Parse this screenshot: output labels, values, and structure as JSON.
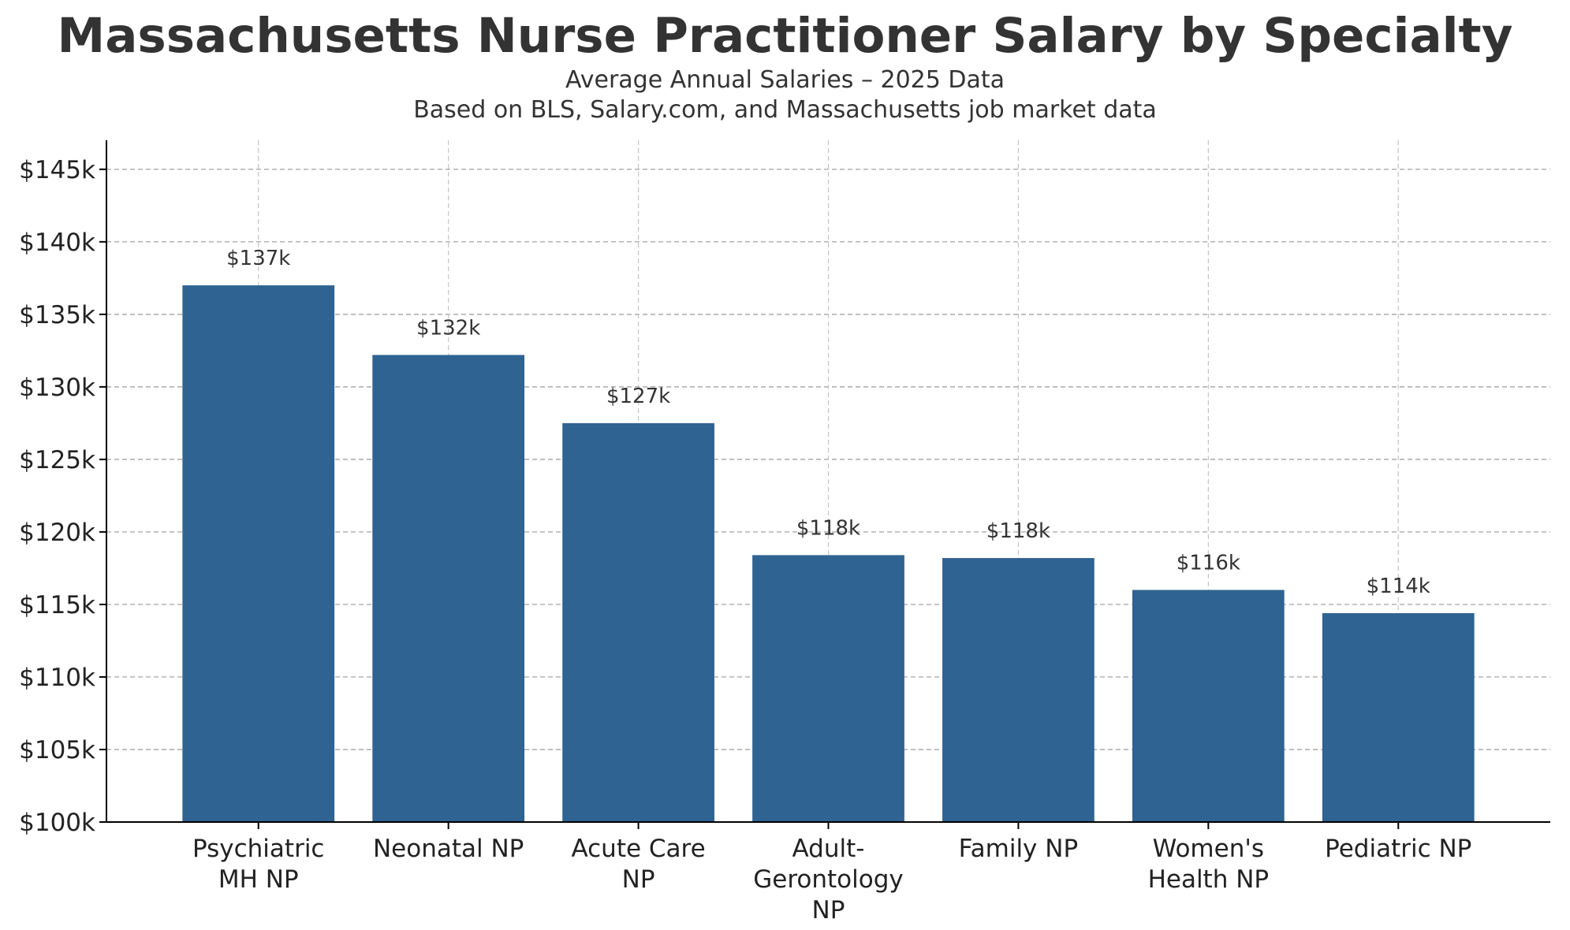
{
  "title": "Massachusetts Nurse Practitioner Salary by Specialty",
  "subtitle_lines": [
    "Average Annual Salaries – 2025 Data",
    "Based on BLS, Salary.com, and Massachusetts job market data"
  ],
  "colors": {
    "bar": "#2f6391",
    "text": "#333333",
    "grid": "#999999",
    "axis": "#000000"
  },
  "chart_data": {
    "type": "bar",
    "categories": [
      [
        "Psychiatric",
        "MH NP"
      ],
      [
        "Neonatal NP"
      ],
      [
        "Acute Care",
        "NP"
      ],
      [
        "Adult-",
        "Gerontology",
        "NP"
      ],
      [
        "Family NP"
      ],
      [
        "Women's",
        "Health NP"
      ],
      [
        "Pediatric NP"
      ]
    ],
    "values": [
      137000,
      132200,
      127500,
      118400,
      118200,
      116000,
      114400
    ],
    "data_labels": [
      "$137k",
      "$132k",
      "$127k",
      "$118k",
      "$118k",
      "$116k",
      "$114k"
    ],
    "ylim": [
      100000,
      147000
    ],
    "yticks": [
      100000,
      105000,
      110000,
      115000,
      120000,
      125000,
      130000,
      135000,
      140000,
      145000
    ],
    "ytick_labels": [
      "$100k",
      "$105k",
      "$110k",
      "$115k",
      "$120k",
      "$125k",
      "$130k",
      "$135k",
      "$140k",
      "$145k"
    ],
    "grid": true,
    "xlabel": "",
    "ylabel": ""
  }
}
